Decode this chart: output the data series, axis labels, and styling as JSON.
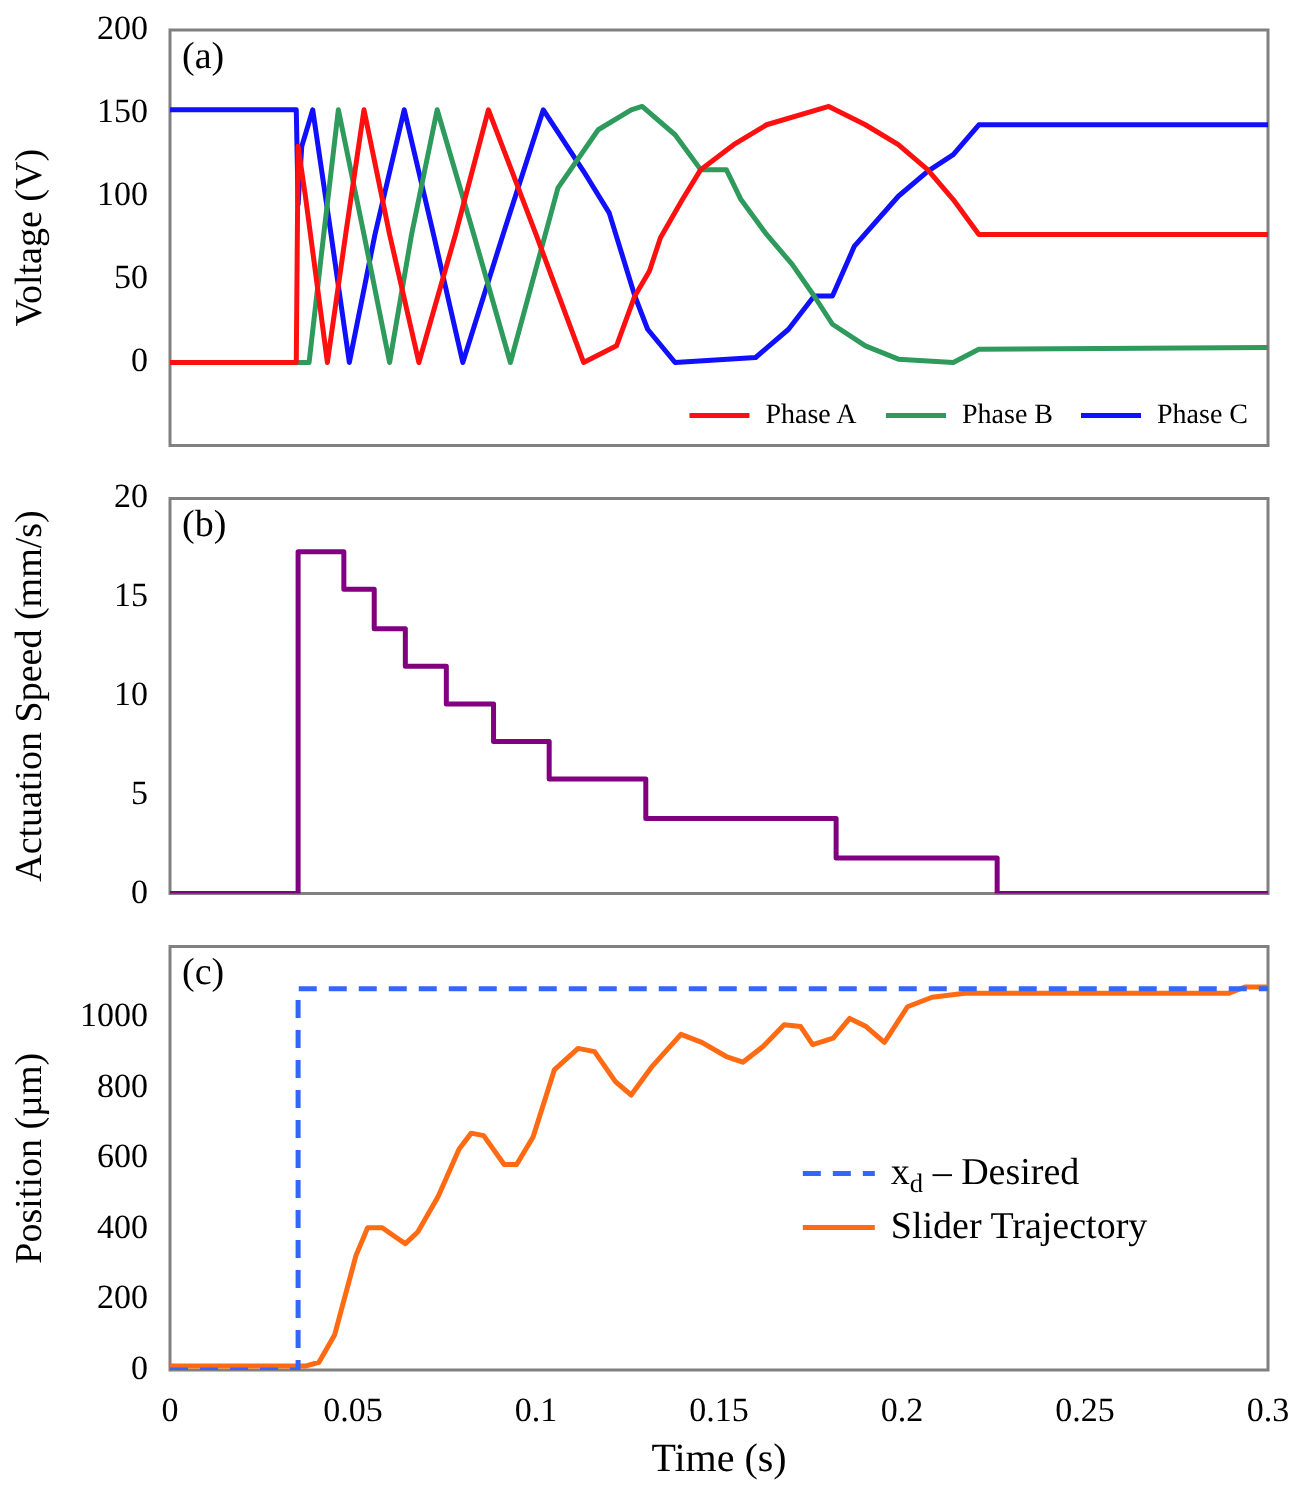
{
  "chart_data": [
    {
      "type": "line",
      "ylabel": "Voltage (V)",
      "annotations": [
        "(a)"
      ],
      "xlim": [
        0,
        0.3
      ],
      "xticks": [
        0,
        0.05,
        0.1,
        0.15,
        0.2,
        0.25,
        0.3
      ],
      "ylim": [
        -50,
        200
      ],
      "yticks": [
        0,
        50,
        100,
        150,
        200
      ],
      "tick_labels": "y",
      "grid": false,
      "legend": "bottom right",
      "marker": "none",
      "series": [
        {
          "name": "Phase A",
          "color": "#ff1010",
          "x": [
            0,
            0.0345,
            0.035,
            0.037,
            0.043,
            0.048,
            0.053,
            0.06,
            0.068,
            0.078,
            0.087,
            0.1,
            0.113,
            0.122,
            0.127,
            0.131,
            0.134,
            0.14,
            0.145,
            0.154,
            0.163,
            0.18,
            0.19,
            0.199,
            0.207,
            0.214,
            0.221,
            0.3
          ],
          "values": [
            0,
            0,
            130,
            100,
            0,
            77,
            152,
            77,
            0,
            77,
            152,
            77,
            0,
            10,
            40,
            55,
            75,
            98,
            116,
            131,
            143,
            154,
            143,
            131,
            116,
            98,
            77,
            77
          ]
        },
        {
          "name": "Phase B",
          "color": "#2e9a5c",
          "x": [
            0,
            0.0345,
            0.038,
            0.042,
            0.046,
            0.053,
            0.06,
            0.066,
            0.073,
            0.083,
            0.093,
            0.106,
            0.117,
            0.126,
            0.129,
            0.138,
            0.145,
            0.152,
            0.156,
            0.163,
            0.17,
            0.176,
            0.181,
            0.19,
            0.199,
            0.214,
            0.221,
            0.3
          ],
          "values": [
            0,
            0,
            0,
            77,
            152,
            77,
            0,
            77,
            152,
            77,
            0,
            105,
            140,
            152,
            154,
            137,
            116,
            116,
            98,
            77,
            59,
            40,
            23,
            10,
            2,
            0,
            8,
            9
          ]
        },
        {
          "name": "Phase C",
          "color": "#1010ff",
          "x": [
            0,
            0.0345,
            0.035,
            0.036,
            0.039,
            0.044,
            0.049,
            0.056,
            0.064,
            0.072,
            0.08,
            0.091,
            0.102,
            0.113,
            0.12,
            0.127,
            0.1305,
            0.138,
            0.16,
            0.169,
            0.176,
            0.181,
            0.187,
            0.199,
            0.207,
            0.214,
            0.221,
            0.3
          ],
          "values": [
            152,
            152,
            95,
            130,
            152,
            77,
            0,
            77,
            152,
            77,
            0,
            77,
            152,
            115,
            90,
            40,
            20,
            0,
            3,
            20,
            40,
            40,
            70,
            100,
            115,
            125,
            143,
            143
          ]
        }
      ]
    },
    {
      "type": "step",
      "ylabel": "Actuation Speed (mm/s)",
      "annotations": [
        "(b)"
      ],
      "xlim": [
        0,
        0.3
      ],
      "xticks": [
        0,
        0.05,
        0.1,
        0.15,
        0.2,
        0.25,
        0.3
      ],
      "ylim": [
        0,
        20
      ],
      "yticks": [
        0,
        5,
        10,
        15,
        20
      ],
      "tick_labels": "y",
      "grid": false,
      "marker": "none",
      "series": [
        {
          "color": "#800080",
          "x": [
            0,
            0.035,
            0.0475,
            0.0558,
            0.0643,
            0.0755,
            0.0884,
            0.1036,
            0.13,
            0.182,
            0.226,
            0.3
          ],
          "values": [
            0,
            17.3,
            15.4,
            13.4,
            11.5,
            9.6,
            7.7,
            5.8,
            3.8,
            1.8,
            0,
            0
          ]
        }
      ]
    },
    {
      "type": "line",
      "xlabel": "Time (s)",
      "ylabel": "Position (µm)",
      "annotations": [
        "(c)"
      ],
      "xlim": [
        0,
        0.3
      ],
      "xticks": [
        0,
        0.05,
        0.1,
        0.15,
        0.2,
        0.25,
        0.3
      ],
      "ylim": [
        0,
        1200
      ],
      "yticks": [
        0,
        200,
        400,
        600,
        800,
        1000
      ],
      "grid": false,
      "legend": "right",
      "marker": "none",
      "series": [
        {
          "name": "x$_{d}$ – Desired",
          "type": "step",
          "line_style": "dashed",
          "color": "#3366ff",
          "x": [
            0,
            0.035,
            0.3
          ],
          "values": [
            0,
            1080,
            1080
          ]
        },
        {
          "name": "Slider Trajectory",
          "color": "#ff6a13",
          "x": [
            0,
            0.037,
            0.0407,
            0.045,
            0.0508,
            0.054,
            0.058,
            0.062,
            0.0643,
            0.0677,
            0.0733,
            0.079,
            0.0823,
            0.0857,
            0.0913,
            0.0947,
            0.0992,
            0.105,
            0.1115,
            0.116,
            0.1217,
            0.126,
            0.1318,
            0.1396,
            0.1453,
            0.152,
            0.1565,
            0.1621,
            0.1678,
            0.1723,
            0.1756,
            0.1812,
            0.1857,
            0.1902,
            0.1952,
            0.2015,
            0.2082,
            0.2172,
            0.2352,
            0.2892,
            0.2937,
            0.3
          ],
          "values": [
            11,
            11,
            22,
            100,
            324,
            403,
            403,
            374,
            358,
            391,
            492,
            626,
            671,
            664,
            582,
            582,
            660,
            850,
            911,
            902,
            817,
            779,
            861,
            951,
            928,
            888,
            872,
            917,
            978,
            973,
            922,
            940,
            996,
            973,
            928,
            1029,
            1056,
            1067,
            1067,
            1067,
            1085,
            1085
          ]
        }
      ]
    }
  ]
}
